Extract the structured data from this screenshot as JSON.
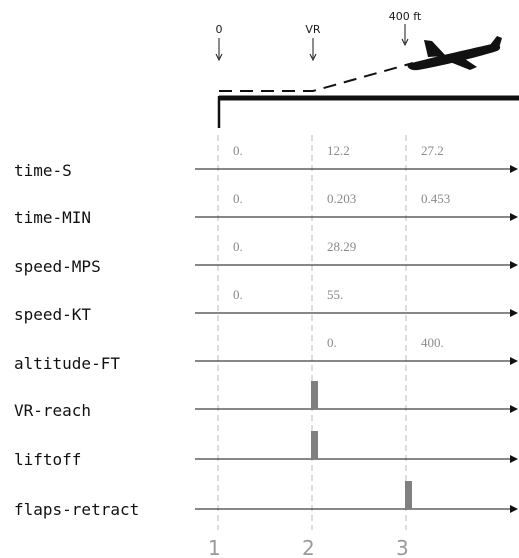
{
  "markers": [
    {
      "label": "0",
      "column": 0
    },
    {
      "label": "VR",
      "column": 1
    },
    {
      "label": "400 ft",
      "column": 2
    }
  ],
  "column_numbers": [
    "1",
    "2",
    "3"
  ],
  "rows": [
    {
      "label": "time-S",
      "values": [
        "0.",
        "12.2",
        "27.2"
      ]
    },
    {
      "label": "time-MIN",
      "values": [
        "0.",
        "0.203",
        "0.453"
      ]
    },
    {
      "label": "speed-MPS",
      "values": [
        "0.",
        "28.29",
        ""
      ]
    },
    {
      "label": "speed-KT",
      "values": [
        "0.",
        "55.",
        ""
      ]
    },
    {
      "label": "altitude-FT",
      "values": [
        "",
        "0.",
        "400."
      ]
    },
    {
      "label": "VR-reach",
      "values": [
        "",
        "",
        ""
      ],
      "event_column": 1
    },
    {
      "label": "liftoff",
      "values": [
        "",
        "",
        ""
      ],
      "event_column": 1
    },
    {
      "label": "flaps-retract",
      "values": [
        "",
        "",
        ""
      ],
      "event_column": 2
    }
  ],
  "colors": {
    "axis": "#111111",
    "guide": "#bdbdbd",
    "value_text": "#8a8a8a",
    "event_bar": "#808080",
    "aircraft": "#111111"
  },
  "icons": {
    "aircraft": "airplane-icon",
    "arrow": "down-arrow-icon"
  }
}
